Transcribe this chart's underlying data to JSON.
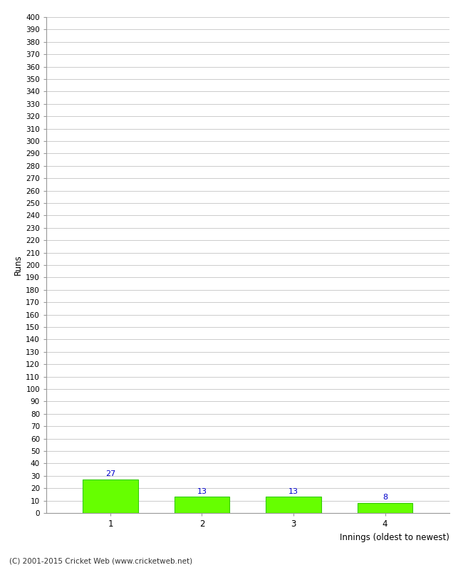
{
  "categories": [
    1,
    2,
    3,
    4
  ],
  "values": [
    27,
    13,
    13,
    8
  ],
  "bar_color": "#66ff00",
  "bar_edge_color": "#33cc00",
  "xlabel": "Innings (oldest to newest)",
  "ylabel": "Runs",
  "ylim": [
    0,
    400
  ],
  "ytick_step": 10,
  "label_color": "#0000cc",
  "footer": "(C) 2001-2015 Cricket Web (www.cricketweb.net)",
  "background_color": "#ffffff",
  "grid_color": "#cccccc",
  "spine_color": "#999999",
  "tick_color": "#555555"
}
